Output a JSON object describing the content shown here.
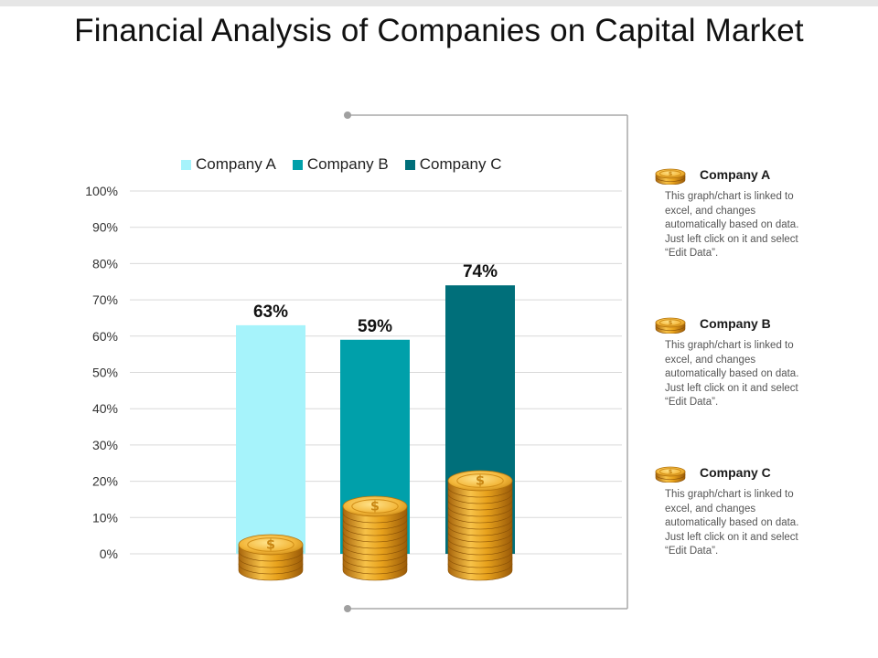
{
  "page": {
    "title": "Financial Analysis of Companies on Capital Market"
  },
  "chart_data": {
    "type": "bar",
    "categories": [
      "Company A",
      "Company B",
      "Company C"
    ],
    "values": [
      63,
      59,
      74
    ],
    "series": [
      {
        "name": "Company A",
        "value": 63,
        "color": "#a6f3fb"
      },
      {
        "name": "Company B",
        "value": 59,
        "color": "#00a0aa"
      },
      {
        "name": "Company C",
        "value": 74,
        "color": "#006f7a"
      }
    ],
    "data_labels": [
      "63%",
      "59%",
      "74%"
    ],
    "y_ticks": [
      "0%",
      "10%",
      "20%",
      "30%",
      "40%",
      "50%",
      "60%",
      "70%",
      "80%",
      "90%",
      "100%"
    ],
    "ylim": [
      0,
      100
    ],
    "grid": true,
    "legend_placement": "top",
    "coin_stacks": [
      4,
      10,
      14
    ]
  },
  "side_panel": [
    {
      "title": "Company A",
      "desc": "This graph/chart is linked to excel, and changes automatically based on data. Just left click on it and select “Edit Data”."
    },
    {
      "title": "Company B",
      "desc": "This graph/chart is linked to excel, and changes automatically based on data. Just left click on it and select “Edit Data”."
    },
    {
      "title": "Company C",
      "desc": "This graph/chart is linked to excel, and changes automatically based on data. Just left click on it and select “Edit Data”."
    }
  ],
  "icons": {
    "coin": "coin-stack-icon"
  }
}
